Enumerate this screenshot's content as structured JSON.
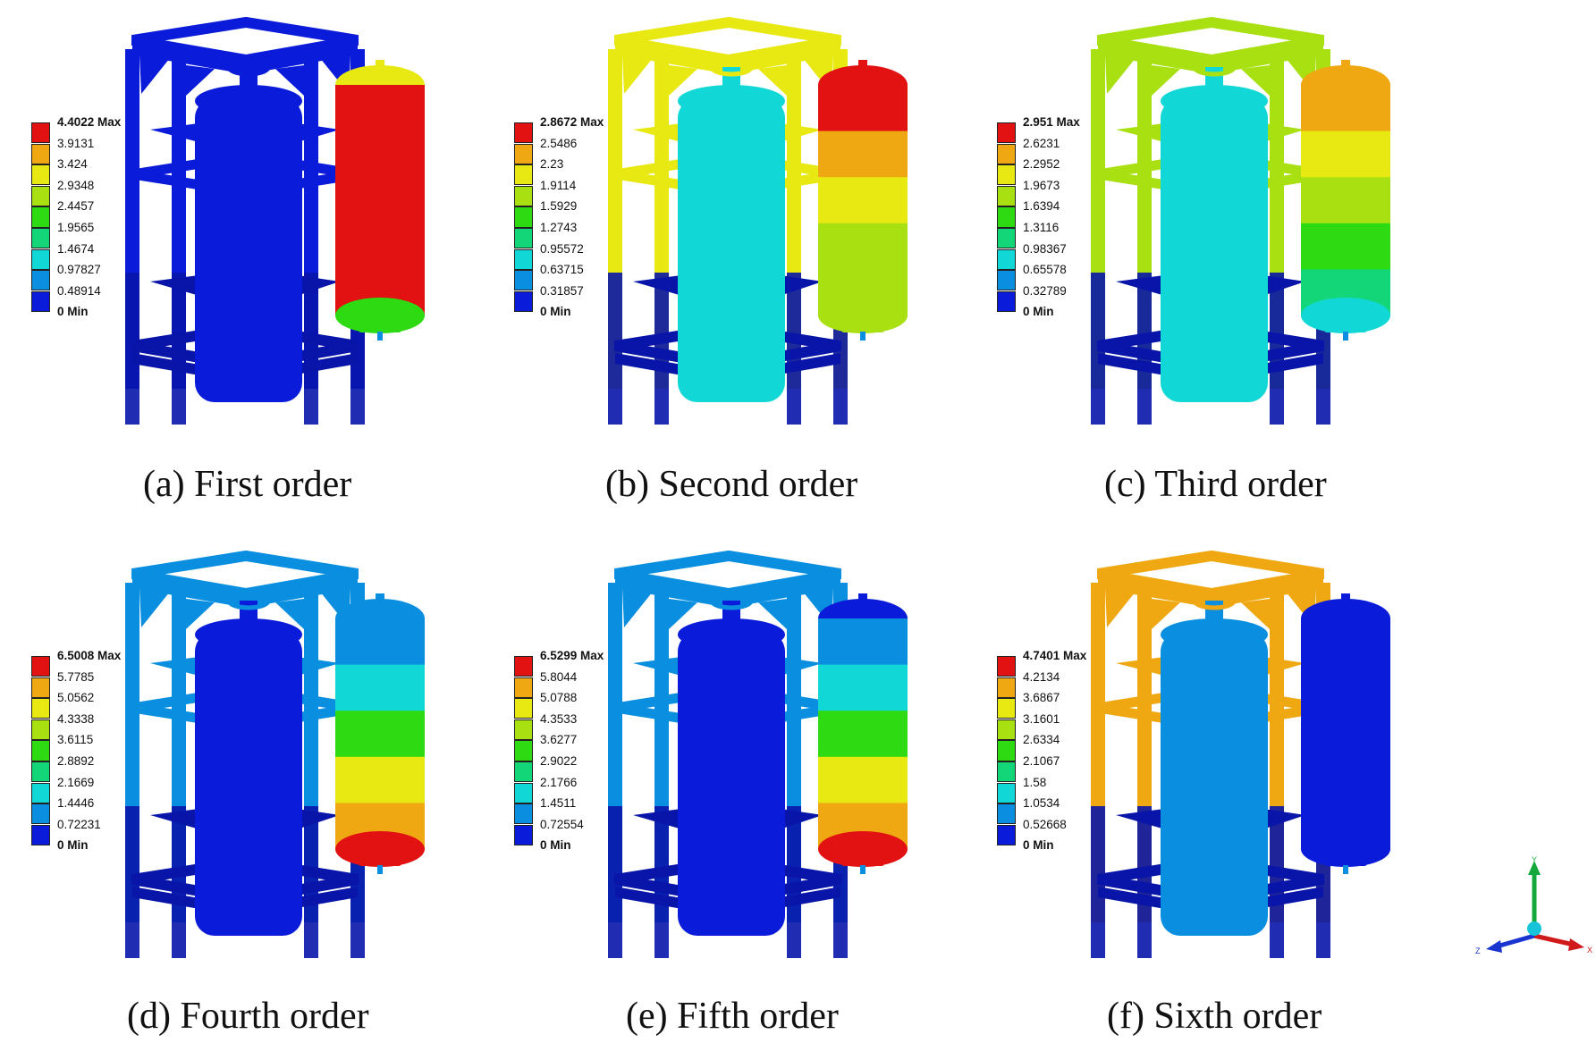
{
  "colors": {
    "contour": [
      "#0a1bd9",
      "#0a8fe0",
      "#12d7d7",
      "#12d678",
      "#2edb12",
      "#a8e012",
      "#e8e812",
      "#f0a812",
      "#e21212"
    ]
  },
  "panels": [
    {
      "id": "a",
      "caption": "(a) First order",
      "legend": [
        "4.4022 Max",
        "3.9131",
        "3.424",
        "2.9348",
        "2.4457",
        "1.9565",
        "1.4674",
        "0.97827",
        "0.48914",
        "0 Min"
      ],
      "frame_color": "#0a1bd9",
      "inner_tank_color": "#0a1bd9",
      "tank_bands": [
        "#e21212",
        "#e21212",
        "#e21212",
        "#e21212",
        "#e21212"
      ],
      "tank_top_color": "#e8e812",
      "tank_bottom_color": "#2edb12"
    },
    {
      "id": "b",
      "caption": "(b) Second order",
      "legend": [
        "2.8672 Max",
        "2.5486",
        "2.23",
        "1.9114",
        "1.5929",
        "1.2743",
        "0.95572",
        "0.63715",
        "0.31857",
        "0 Min"
      ],
      "frame_color": "#e8e812",
      "inner_tank_color": "#12d7d7",
      "tank_bands": [
        "#e21212",
        "#f0a812",
        "#e8e812",
        "#a8e012",
        "#a8e012"
      ],
      "tank_top_color": "#e21212",
      "tank_bottom_color": "#a8e012"
    },
    {
      "id": "c",
      "caption": "(c) Third order",
      "legend": [
        "2.951 Max",
        "2.6231",
        "2.2952",
        "1.9673",
        "1.6394",
        "1.3116",
        "0.98367",
        "0.65578",
        "0.32789",
        "0 Min"
      ],
      "frame_color": "#a8e012",
      "inner_tank_color": "#12d7d7",
      "tank_bands": [
        "#f0a812",
        "#e8e812",
        "#a8e012",
        "#2edb12",
        "#12d678"
      ],
      "tank_top_color": "#f0a812",
      "tank_bottom_color": "#12d7d7"
    },
    {
      "id": "d",
      "caption": "(d) Fourth order",
      "legend": [
        "6.5008 Max",
        "5.7785",
        "5.0562",
        "4.3338",
        "3.6115",
        "2.8892",
        "2.1669",
        "1.4446",
        "0.72231",
        "0 Min"
      ],
      "frame_color": "#0a8fe0",
      "inner_tank_color": "#0a1bd9",
      "tank_bands": [
        "#0a8fe0",
        "#12d7d7",
        "#2edb12",
        "#e8e812",
        "#f0a812"
      ],
      "tank_top_color": "#0a8fe0",
      "tank_bottom_color": "#e21212"
    },
    {
      "id": "e",
      "caption": "(e) Fifth order",
      "legend": [
        "6.5299 Max",
        "5.8044",
        "5.0788",
        "4.3533",
        "3.6277",
        "2.9022",
        "2.1766",
        "1.4511",
        "0.72554",
        "0 Min"
      ],
      "frame_color": "#0a8fe0",
      "inner_tank_color": "#0a1bd9",
      "tank_bands": [
        "#0a8fe0",
        "#12d7d7",
        "#2edb12",
        "#e8e812",
        "#f0a812"
      ],
      "tank_top_color": "#0a1bd9",
      "tank_bottom_color": "#e21212"
    },
    {
      "id": "f",
      "caption": "(f) Sixth order",
      "legend": [
        "4.7401 Max",
        "4.2134",
        "3.6867",
        "3.1601",
        "2.6334",
        "2.1067",
        "1.58",
        "1.0534",
        "0.52668",
        "0 Min"
      ],
      "frame_color": "#f0a812",
      "inner_tank_color": "#0a8fe0",
      "tank_bands": [
        "#0a1bd9",
        "#0a1bd9",
        "#0a1bd9",
        "#0a1bd9",
        "#0a1bd9"
      ],
      "tank_top_color": "#0a1bd9",
      "tank_bottom_color": "#0a1bd9"
    }
  ],
  "triad": {
    "x_label": "X",
    "y_label": "Y",
    "z_label": "Z"
  }
}
